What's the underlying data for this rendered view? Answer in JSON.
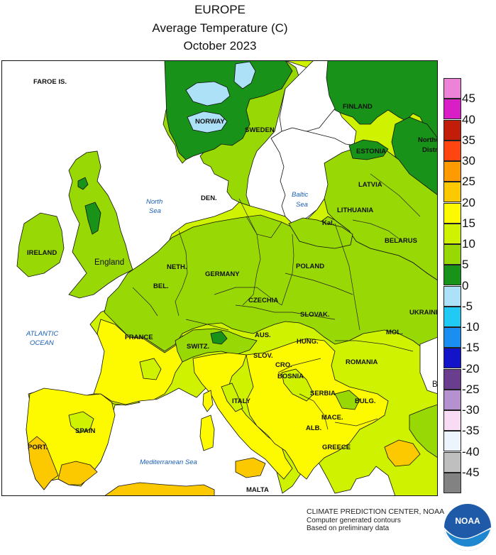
{
  "titles": {
    "line1": "EUROPE",
    "line2": "Average Temperature (C)",
    "line3": "October 2023"
  },
  "legend": {
    "colors": [
      "#ee82d6",
      "#d91ec6",
      "#c11d08",
      "#ff4611",
      "#ff9a00",
      "#fcc800",
      "#fdfa00",
      "#cef200",
      "#98d804",
      "#189218",
      "#ace1f8",
      "#21c9f5",
      "#1a8ff1",
      "#1313c9",
      "#6b3d8e",
      "#b592cf",
      "#f7dcf3",
      "#eef4fb",
      "#bfbfbf",
      "#828282"
    ],
    "labels": [
      "45",
      "40",
      "35",
      "30",
      "25",
      "20",
      "15",
      "10",
      "5",
      "0",
      "-5",
      "-10",
      "-15",
      "-20",
      "-25",
      "-30",
      "-35",
      "-40",
      "-45"
    ]
  },
  "map": {
    "countries": [
      "FAROE IS.",
      "NORWAY",
      "SWEDEN",
      "FINLAND",
      "ESTONIA",
      "LATVIA",
      "LITHUANIA",
      "Kal.",
      "BELARUS",
      "DEN.",
      "IRELAND",
      "England",
      "NETH.",
      "BEL.",
      "GERMANY",
      "POLAND",
      "CZECHIA",
      "SLOVAK.",
      "UKRAINE",
      "FRANCE",
      "SWITZ.",
      "AUS.",
      "HUNG.",
      "SLOV.",
      "MOL.",
      "CRO.",
      "BOSNIA",
      "ROMANIA",
      "SERBIA",
      "BULG.",
      "ITALY",
      "SPAIN",
      "PORT.",
      "MACE.",
      "ALB.",
      "GREECE",
      "MALTA",
      "Northw",
      "Distr",
      "B"
    ],
    "seas": [
      [
        "North",
        "Sea"
      ],
      [
        "Baltic",
        "Sea"
      ],
      [
        "ATLANTIC",
        "OCEAN"
      ],
      [
        "Mediterranean Sea"
      ]
    ]
  },
  "credit": {
    "line1": "CLIMATE PREDICTION CENTER, NOAA",
    "line2": "Computer generated contours",
    "line3": "Based on preliminary data"
  },
  "logo": {
    "text": "NOAA"
  }
}
